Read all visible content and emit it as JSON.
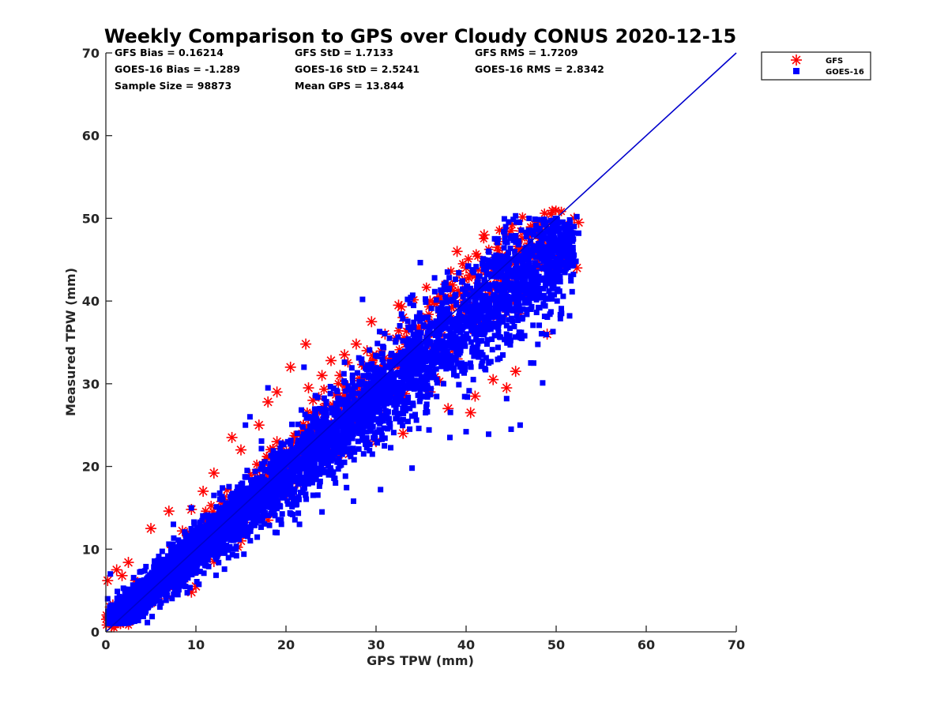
{
  "chart_data": {
    "type": "scatter",
    "title": "Weekly Comparison to GPS over Cloudy CONUS 2020-12-15",
    "xlabel": "GPS TPW (mm)",
    "ylabel": "Measured TPW (mm)",
    "xlim": [
      0,
      70
    ],
    "ylim": [
      0,
      70
    ],
    "xticks": [
      "0",
      "10",
      "20",
      "30",
      "40",
      "50",
      "60",
      "70"
    ],
    "yticks": [
      "0",
      "10",
      "20",
      "30",
      "40",
      "50",
      "60",
      "70"
    ],
    "legend_position": "top-right outside",
    "grid": false,
    "reference_line": {
      "x": [
        0,
        70
      ],
      "y": [
        0,
        70
      ],
      "color": "#0000cc"
    },
    "stats": [
      [
        "GFS Bias = 0.16214",
        "GFS StD = 1.7133",
        "GFS RMS = 1.7209"
      ],
      [
        "GOES-16 Bias = -1.289",
        "GOES-16 StD = 2.5241",
        "GOES-16 RMS = 2.8342"
      ],
      [
        "Sample Size = 98873",
        "Mean GPS = 13.844",
        ""
      ]
    ],
    "series": [
      {
        "name": "GFS",
        "marker": "asterisk",
        "color": "#ff0000",
        "points": [
          [
            0.2,
            6.2
          ],
          [
            1.2,
            7.5
          ],
          [
            1.8,
            6.8
          ],
          [
            2.5,
            8.4
          ],
          [
            5,
            12.5
          ],
          [
            7,
            14.6
          ],
          [
            8.5,
            12.2
          ],
          [
            9.5,
            14.8
          ],
          [
            10.8,
            17
          ],
          [
            12,
            19.2
          ],
          [
            14,
            23.5
          ],
          [
            15,
            22
          ],
          [
            17,
            25
          ],
          [
            18,
            27.8
          ],
          [
            19,
            29
          ],
          [
            20.5,
            32
          ],
          [
            22.2,
            34.8
          ],
          [
            22.5,
            29.5
          ],
          [
            24,
            31
          ],
          [
            25,
            32.8
          ],
          [
            26.5,
            33.5
          ],
          [
            27.8,
            34.8
          ],
          [
            29.5,
            37.5
          ],
          [
            32.5,
            39.5
          ],
          [
            32.8,
            39.3
          ],
          [
            33,
            38
          ],
          [
            34.5,
            36.5
          ],
          [
            36,
            40
          ],
          [
            38,
            42
          ],
          [
            39,
            46
          ],
          [
            40,
            44
          ],
          [
            42,
            48
          ],
          [
            42.5,
            44.5
          ],
          [
            43.5,
            46.5
          ],
          [
            45,
            48.5
          ],
          [
            46,
            46
          ],
          [
            47,
            47
          ],
          [
            48,
            44
          ],
          [
            48.5,
            49.2
          ],
          [
            49,
            45
          ],
          [
            49.5,
            45.5
          ],
          [
            50,
            44.2
          ],
          [
            51,
            44.5
          ],
          [
            51.5,
            48.5
          ],
          [
            52,
            50
          ],
          [
            52.5,
            49.5
          ],
          [
            52.3,
            44
          ],
          [
            49,
            36
          ],
          [
            44.5,
            29.5
          ],
          [
            43,
            30.5
          ],
          [
            40.5,
            26.5
          ],
          [
            41,
            28.5
          ],
          [
            38,
            27
          ],
          [
            33,
            24
          ],
          [
            30,
            23
          ],
          [
            27,
            21.5
          ],
          [
            24,
            19.5
          ],
          [
            21,
            16
          ],
          [
            18,
            13.5
          ],
          [
            15,
            11
          ],
          [
            12,
            8.5
          ],
          [
            10,
            5.5
          ],
          [
            9.5,
            4.8
          ],
          [
            8,
            6
          ],
          [
            5,
            3.5
          ],
          [
            3,
            2.5
          ],
          [
            1,
            1.8
          ],
          [
            0.5,
            3
          ],
          [
            2,
            4
          ],
          [
            4,
            5.5
          ],
          [
            6,
            8
          ],
          [
            9,
            11
          ],
          [
            11,
            13.5
          ],
          [
            13,
            16
          ],
          [
            16,
            19
          ],
          [
            19,
            23
          ],
          [
            23,
            28
          ],
          [
            26,
            31
          ],
          [
            29,
            34
          ],
          [
            31,
            36
          ],
          [
            35,
            38
          ],
          [
            37,
            40.5
          ],
          [
            41,
            43
          ],
          [
            44,
            45.5
          ],
          [
            47,
            41
          ],
          [
            46,
            38.5
          ],
          [
            45.5,
            31.5
          ],
          [
            39,
            33
          ],
          [
            36,
            29
          ],
          [
            34,
            31.5
          ]
        ]
      },
      {
        "name": "GOES-16",
        "marker": "square",
        "color": "#0000ff",
        "outliers": [
          [
            52.3,
            50.2
          ],
          [
            51.5,
            49.8
          ],
          [
            45.5,
            50.3
          ],
          [
            50.2,
            49.5
          ],
          [
            47.5,
            48
          ],
          [
            28.5,
            40.2
          ],
          [
            26.5,
            32.6
          ],
          [
            34,
            19.8
          ],
          [
            42.5,
            23.9
          ],
          [
            40,
            24.2
          ],
          [
            38.2,
            23.5
          ],
          [
            47.5,
            32.5
          ],
          [
            48.5,
            30.1
          ],
          [
            44.5,
            28.2
          ],
          [
            16,
            26
          ],
          [
            18,
            29.5
          ],
          [
            22,
            32
          ],
          [
            15.5,
            25
          ],
          [
            30.5,
            17.2
          ],
          [
            21.5,
            13
          ],
          [
            24,
            14.5
          ],
          [
            27.5,
            15.8
          ],
          [
            52.2,
            44.8
          ],
          [
            52.5,
            48.2
          ],
          [
            36.5,
            42.8
          ],
          [
            33.5,
            40.2
          ],
          [
            41.5,
            36
          ],
          [
            35.5,
            26.5
          ],
          [
            45,
            24.5
          ],
          [
            12,
            16.5
          ],
          [
            9.5,
            15
          ],
          [
            7.5,
            13
          ],
          [
            0.2,
            4
          ],
          [
            0.5,
            7
          ],
          [
            29,
            29.5
          ],
          [
            25.5,
            18
          ],
          [
            19,
            12
          ],
          [
            14.5,
            9.2
          ],
          [
            11,
            8.2
          ],
          [
            4,
            2.8
          ],
          [
            6,
            3
          ],
          [
            8,
            4.5
          ],
          [
            46,
            25
          ],
          [
            40.8,
            30.5
          ],
          [
            43.8,
            40.2
          ],
          [
            49.2,
            41.2
          ],
          [
            50.6,
            38.5
          ],
          [
            31.5,
            35.5
          ],
          [
            37.5,
            30
          ],
          [
            46.5,
            35.8
          ]
        ],
        "regression_band": {
          "slope": 0.92,
          "intercept": 0.6,
          "spread_sd_at_x0": 0.9,
          "spread_sd_per_unit_x": 0.06,
          "x_range": [
            0,
            52
          ],
          "n_rendered": 5200
        }
      }
    ]
  }
}
